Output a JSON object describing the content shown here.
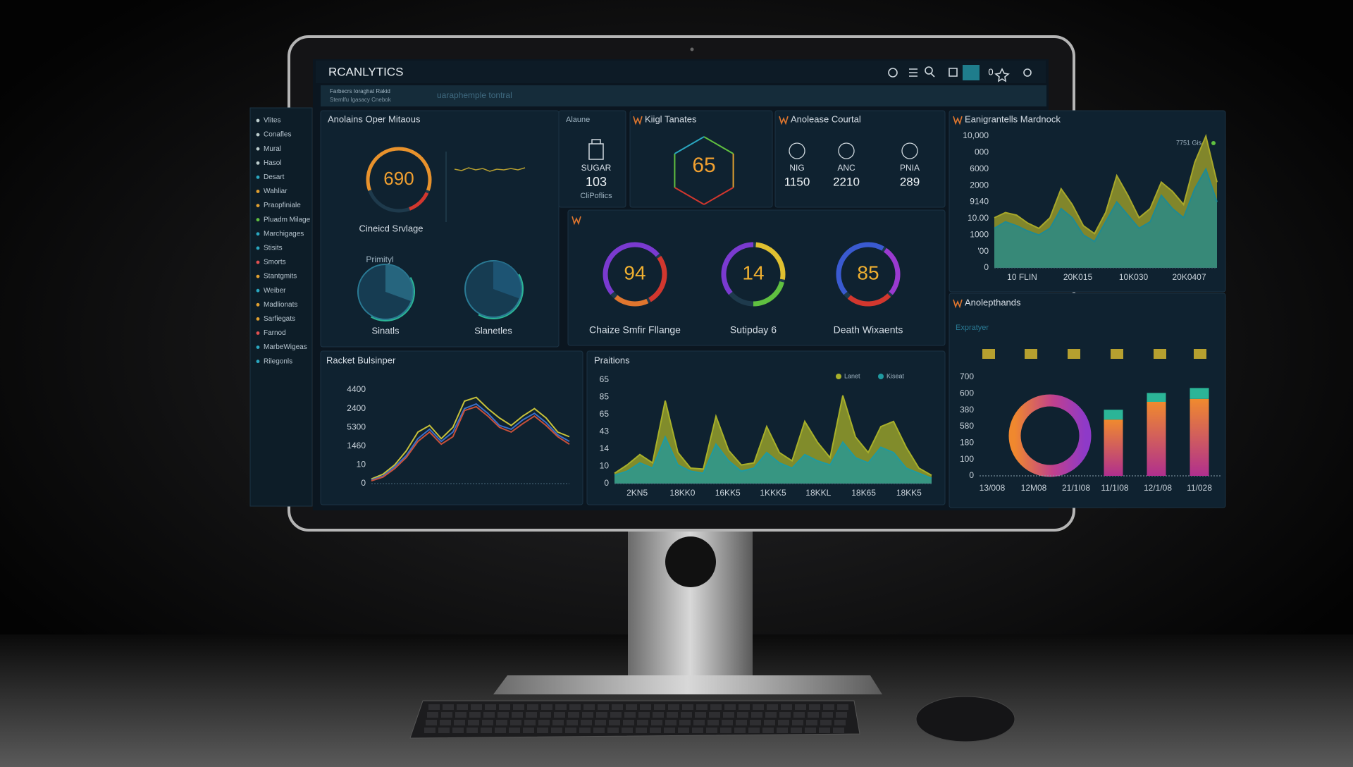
{
  "header": {
    "brand": "RCANLYTICS",
    "subtitle_lines": [
      "Farbecrs Ioraghat Rakid",
      "Stemlfu Igasacy Cnebok"
    ],
    "search": "uaraphemple tontral",
    "badge": "0"
  },
  "sidebar": {
    "items": [
      "Vlites",
      "Conafles",
      "Mural",
      "Hasol",
      "Desart",
      "Wahliar",
      "Praopfiniale",
      "Pluadm Milage",
      "Marchigages",
      "Stisits",
      "Smorts",
      "Stantgmits",
      "Weiber",
      "Madlionats",
      "Sarfiegats",
      "Farnod",
      "MarbeWigeas",
      "Rilegonls"
    ]
  },
  "overview": {
    "title": "Anolains Oper Mitaous",
    "gauge": {
      "value": 690,
      "label": "Cineicd Srvlage"
    },
    "sub_label": "Primityl",
    "pies": [
      "Sinatls",
      "Slanetles"
    ]
  },
  "alaune": {
    "title": "Alaune",
    "name": "SUGAR",
    "value": 103,
    "caption": "CliPoflics"
  },
  "kiigl": {
    "title": "Kiigl Tanates",
    "value": 65
  },
  "anolease": {
    "title": "Anolease Courtal",
    "stats": [
      {
        "label": "NIG",
        "value": 1150
      },
      {
        "label": "ANC",
        "value": 2210
      },
      {
        "label": "PNIA",
        "value": 289
      }
    ]
  },
  "gauges": {
    "items": [
      {
        "value": 94,
        "label": "Chaize Smfir Fllange"
      },
      {
        "value": 14,
        "label": "Sutipday 6"
      },
      {
        "value": 85,
        "label": "Death Wixaents"
      }
    ]
  },
  "trend": {
    "title": "Eanigrantells Mardnock",
    "legend": "7751 Gis",
    "ylim": [
      0,
      100
    ],
    "y_labels": [
      "10,000",
      "000",
      "6000",
      "2000",
      "9140",
      "10.00",
      "1000",
      "'00",
      "0"
    ],
    "x_labels": [
      "10 FLIN",
      "20K015",
      "10K030",
      "20K0407"
    ],
    "series": [
      {
        "color": "#a8a82a",
        "values": [
          38,
          42,
          40,
          34,
          30,
          38,
          60,
          48,
          32,
          26,
          42,
          70,
          55,
          38,
          45,
          65,
          58,
          48,
          80,
          100,
          65
        ]
      },
      {
        "color": "#1f8a93",
        "values": [
          30,
          35,
          32,
          28,
          25,
          30,
          45,
          38,
          25,
          20,
          35,
          50,
          40,
          30,
          35,
          55,
          45,
          38,
          60,
          75,
          50
        ]
      }
    ]
  },
  "racket": {
    "title": "Racket Bulsinper",
    "ylim": [
      0,
      100
    ],
    "y_labels": [
      "4400",
      "2400",
      "5300",
      "1460",
      "10",
      "0"
    ],
    "series": [
      {
        "color": "#c8c23a",
        "values": [
          5,
          10,
          20,
          35,
          55,
          62,
          48,
          60,
          88,
          92,
          80,
          70,
          62,
          72,
          80,
          70,
          55,
          50
        ]
      },
      {
        "color": "#3a6fc9",
        "values": [
          4,
          8,
          18,
          30,
          48,
          58,
          45,
          55,
          80,
          85,
          75,
          62,
          58,
          68,
          75,
          65,
          52,
          45
        ]
      },
      {
        "color": "#c9503a",
        "values": [
          3,
          7,
          16,
          28,
          45,
          55,
          42,
          50,
          78,
          82,
          72,
          60,
          55,
          64,
          72,
          62,
          50,
          42
        ]
      }
    ]
  },
  "praitions": {
    "title": "Praitions",
    "legend": [
      "Lanet",
      "Kiseat"
    ],
    "ylim": [
      0,
      100
    ],
    "y_labels": [
      "65",
      "85",
      "65",
      "43",
      "14",
      "10",
      "0"
    ],
    "x_labels": [
      "2KN5",
      "18KK0",
      "16KK5",
      "1KKK5",
      "18KKL",
      "18K65",
      "18KK5"
    ],
    "series": [
      {
        "color": "#a8b02a",
        "values": [
          10,
          18,
          28,
          20,
          80,
          30,
          15,
          14,
          65,
          32,
          18,
          20,
          55,
          30,
          22,
          60,
          40,
          25,
          85,
          45,
          30,
          55,
          60,
          35,
          15,
          8
        ]
      },
      {
        "color": "#1f9aa0",
        "values": [
          8,
          12,
          20,
          15,
          45,
          18,
          12,
          10,
          38,
          22,
          12,
          15,
          30,
          20,
          15,
          28,
          22,
          18,
          40,
          25,
          20,
          35,
          30,
          15,
          10,
          5
        ]
      }
    ]
  },
  "anolepthands": {
    "title": "Anolepthands",
    "sub_label": "Expratyer",
    "ylim": [
      0,
      100
    ],
    "y_labels": [
      "700",
      "600",
      "380",
      "580",
      "180",
      "100",
      "0"
    ],
    "x_labels": [
      "13/008",
      "12M08",
      "21/1I08",
      "11/1I08",
      "12/1/08",
      "11/028"
    ],
    "series": [
      {
        "color": "#e0582f",
        "values": [
          57,
          75,
          78
        ]
      },
      {
        "color": "#2bb597",
        "values": [
          10,
          9,
          11
        ]
      }
    ]
  }
}
